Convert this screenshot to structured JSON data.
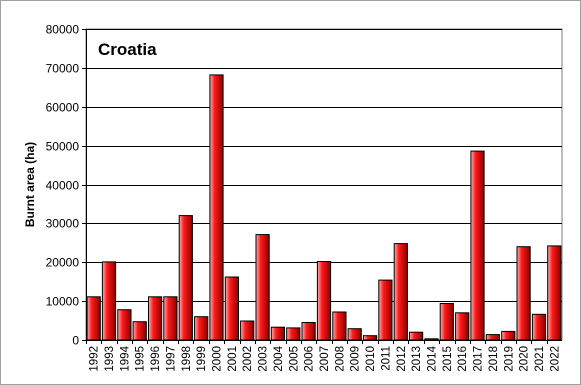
{
  "chart_data": {
    "type": "bar",
    "title": "Croatia",
    "ylabel": "Burnt area (ha)",
    "xlabel": "",
    "ylim": [
      0,
      80000
    ],
    "yticks": [
      0,
      10000,
      20000,
      30000,
      40000,
      50000,
      60000,
      70000,
      80000
    ],
    "grid": true,
    "legend": "none",
    "bar_color": "#e8000b",
    "categories": [
      "1992",
      "1993",
      "1994",
      "1995",
      "1996",
      "1997",
      "1998",
      "1999",
      "2000",
      "2001",
      "2002",
      "2003",
      "2004",
      "2005",
      "2006",
      "2007",
      "2008",
      "2009",
      "2010",
      "2011",
      "2012",
      "2013",
      "2014",
      "2015",
      "2016",
      "2017",
      "2018",
      "2019",
      "2020",
      "2021",
      "2022"
    ],
    "values": [
      11100,
      20100,
      7800,
      4700,
      11100,
      11100,
      32000,
      6000,
      68200,
      16200,
      4900,
      27100,
      3300,
      3100,
      4500,
      20200,
      7200,
      2900,
      1100,
      15400,
      24800,
      2000,
      300,
      9400,
      7000,
      48600,
      1400,
      2200,
      24000,
      6600,
      24200
    ]
  }
}
